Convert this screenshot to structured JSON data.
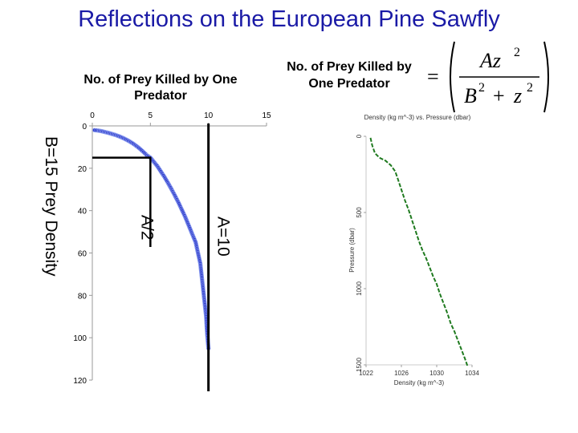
{
  "slide_title": "Reflections on the European Pine Sawfly",
  "left_label": [
    "No. of Prey Killed by One",
    "Predator"
  ],
  "right_label": [
    "No. of Prey Killed by",
    "One Predator"
  ],
  "equation": {
    "lhs": "=",
    "numerator": "Az",
    "num_exp": "2",
    "denominator_a": "B",
    "den_exp_a": "2",
    "plus": "+",
    "denominator_b": "z",
    "den_exp_b": "2"
  },
  "colors": {
    "title": "#1a1aa6",
    "curve": "#2a36c8",
    "curve_stroke": "#8a9cf0",
    "green": "#1f7a1f"
  },
  "chart_data": [
    {
      "type": "scatter",
      "title": "",
      "x_axis_ticks": [
        "0",
        "5",
        "10",
        "15"
      ],
      "y_axis_ticks": [
        "0",
        "20",
        "40",
        "60",
        "80",
        "100",
        "120"
      ],
      "xlim": [
        0,
        15
      ],
      "ylim": [
        0,
        120
      ],
      "y_inverted": true,
      "annotations": {
        "b_label": "B=15 Prey Density",
        "a_half_label": "A/2",
        "a_label": "A=10",
        "a_half_value": 5,
        "b_value": 15,
        "a_value": 10
      },
      "series": [
        {
          "x": [
            0.2,
            0.5,
            0.8,
            1.1,
            1.4,
            1.7,
            2.0,
            2.3,
            2.6,
            2.9,
            3.2,
            3.5,
            3.8,
            4.1,
            4.4,
            4.7,
            5.0,
            5.3,
            5.6,
            5.9,
            6.2,
            6.5,
            6.8,
            7.1,
            7.4,
            7.7,
            8.0,
            8.3,
            8.6,
            8.9,
            9.1,
            9.3,
            9.4,
            9.5,
            9.6,
            9.7,
            9.8,
            9.85,
            9.9,
            9.95,
            10.0
          ],
          "y": [
            2.0,
            2.2,
            2.5,
            2.9,
            3.3,
            3.8,
            4.3,
            4.9,
            5.6,
            6.4,
            7.3,
            8.3,
            9.5,
            10.8,
            12.3,
            13.9,
            15.0,
            17.0,
            19.0,
            21.5,
            24.0,
            26.8,
            29.7,
            32.8,
            36.0,
            39.5,
            43.0,
            47.0,
            51.0,
            55.0,
            60.0,
            65.0,
            70.0,
            75.0,
            80.0,
            85.0,
            90.0,
            95.0,
            99.0,
            102.0,
            105.0
          ]
        }
      ]
    },
    {
      "type": "line",
      "title": "Density (kg m^-3) vs. Pressure (dbar)",
      "xlabel": "Density (kg m^-3)",
      "ylabel": "Pressure (dbar)",
      "x_axis_ticks": [
        "1022",
        "1026",
        "1030",
        "1034"
      ],
      "y_axis_ticks": [
        "0",
        "500",
        "1000",
        "1500"
      ],
      "xlim": [
        1022,
        1034
      ],
      "ylim": [
        0,
        1500
      ],
      "y_inverted": true,
      "series": [
        {
          "x": [
            1022.5,
            1022.7,
            1023.0,
            1023.5,
            1024.2,
            1024.8,
            1025.3,
            1025.6,
            1026.0,
            1026.4,
            1026.8,
            1027.2,
            1027.6,
            1028.0,
            1028.4,
            1028.8,
            1029.2,
            1029.6,
            1030.0,
            1030.4,
            1030.8,
            1031.2,
            1031.6,
            1032.0,
            1032.4,
            1032.8,
            1033.2,
            1033.5
          ],
          "y": [
            10,
            60,
            110,
            140,
            160,
            190,
            230,
            280,
            350,
            420,
            480,
            550,
            620,
            690,
            750,
            800,
            860,
            920,
            970,
            1040,
            1100,
            1160,
            1230,
            1280,
            1340,
            1400,
            1460,
            1510
          ]
        }
      ]
    }
  ]
}
